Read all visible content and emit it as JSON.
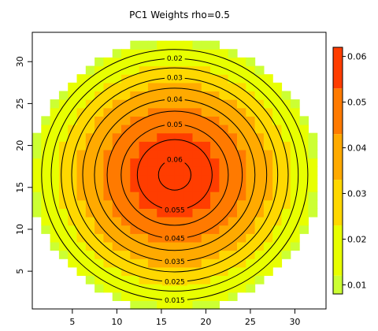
{
  "chart_data": {
    "type": "heatmap",
    "title": "PC1 Weights rho=0.5",
    "xlabel": "",
    "ylabel": "",
    "xlim": [
      0.5,
      33.5
    ],
    "ylim": [
      0.5,
      33.5
    ],
    "x_ticks": [
      "5",
      "10",
      "15",
      "20",
      "25",
      "30"
    ],
    "y_ticks": [
      "5",
      "10",
      "15",
      "20",
      "25",
      "30"
    ],
    "grid_size": 32,
    "center": [
      16.5,
      16.5
    ],
    "mask_radius": 16,
    "peak_value": 0.062,
    "edge_value": 0.01,
    "colorbar_ticks": [
      "0.01",
      "0.02",
      "0.03",
      "0.04",
      "0.05",
      "0.06"
    ],
    "colorbar_range": [
      0.008,
      0.062
    ],
    "color_levels": [
      {
        "min": 0.008,
        "max": 0.012,
        "color": "#ccff33"
      },
      {
        "min": 0.012,
        "max": 0.023,
        "color": "#e8ff00"
      },
      {
        "min": 0.023,
        "max": 0.033,
        "color": "#ffd800"
      },
      {
        "min": 0.033,
        "max": 0.043,
        "color": "#ffaa00"
      },
      {
        "min": 0.043,
        "max": 0.053,
        "color": "#ff7a00"
      },
      {
        "min": 0.053,
        "max": 0.062,
        "color": "#ff3d00"
      }
    ],
    "contour_levels": [
      0.015,
      0.02,
      0.025,
      0.03,
      0.035,
      0.04,
      0.045,
      0.05,
      0.055,
      0.06
    ],
    "contour_labels": [
      {
        "level": 0.02,
        "text": "0.02",
        "side": "top"
      },
      {
        "level": 0.03,
        "text": "0.03",
        "side": "top"
      },
      {
        "level": 0.04,
        "text": "0.04",
        "side": "top"
      },
      {
        "level": 0.05,
        "text": "0.05",
        "side": "top"
      },
      {
        "level": 0.06,
        "text": "0.06",
        "side": "top"
      },
      {
        "level": 0.055,
        "text": "0.055",
        "side": "bottom"
      },
      {
        "level": 0.045,
        "text": "0.045",
        "side": "bottom"
      },
      {
        "level": 0.035,
        "text": "0.035",
        "side": "bottom"
      },
      {
        "level": 0.025,
        "text": "0.025",
        "side": "bottom"
      },
      {
        "level": 0.015,
        "text": "0.015",
        "side": "bottom"
      }
    ]
  }
}
